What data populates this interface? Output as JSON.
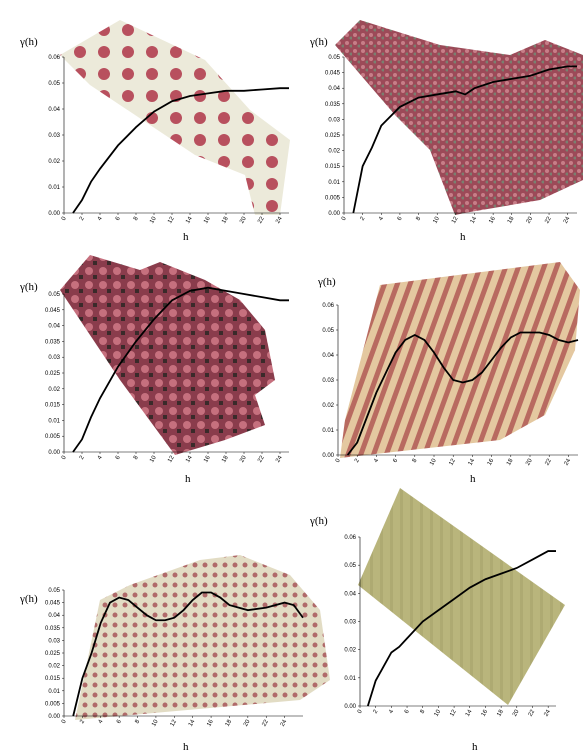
{
  "chart_data": [
    {
      "type": "line",
      "y_label": "γ(h)",
      "x_label": "h",
      "color": "#000000",
      "x": [
        1,
        2,
        3,
        4,
        6,
        8,
        10,
        12,
        14,
        16,
        18,
        20,
        22,
        24,
        25
      ],
      "values": [
        0,
        0.005,
        0.012,
        0.017,
        0.026,
        0.033,
        0.039,
        0.043,
        0.045,
        0.046,
        0.047,
        0.047,
        0.0475,
        0.048,
        0.048
      ],
      "xlim": [
        0,
        25
      ],
      "ylim": [
        0,
        0.06
      ],
      "xticks": [
        0,
        2,
        4,
        6,
        8,
        10,
        12,
        14,
        16,
        18,
        20,
        22,
        24
      ],
      "yticks": [
        {
          "value": 0,
          "label": "0.00"
        },
        0.01,
        0.02,
        0.03,
        0.04,
        0.05,
        0.06
      ]
    },
    {
      "type": "line",
      "y_label": "γ(h)",
      "x_label": "h",
      "color": "#000000",
      "x": [
        1,
        2,
        3,
        4,
        6,
        8,
        10,
        12,
        13,
        14,
        16,
        18,
        20,
        22,
        24,
        25
      ],
      "values": [
        0,
        0.015,
        0.021,
        0.028,
        0.034,
        0.037,
        0.038,
        0.039,
        0.038,
        0.04,
        0.042,
        0.043,
        0.044,
        0.046,
        0.047,
        0.047
      ],
      "xlim": [
        0,
        25
      ],
      "ylim": [
        0,
        0.05
      ],
      "xticks": [
        0,
        2,
        4,
        6,
        8,
        10,
        12,
        14,
        16,
        18,
        20,
        22,
        24
      ],
      "yticks": [
        {
          "value": 0,
          "label": "0.00"
        },
        0.005,
        0.01,
        0.015,
        0.02,
        0.025,
        0.03,
        0.035,
        0.04,
        0.045,
        0.05
      ]
    },
    {
      "type": "line",
      "y_label": "γ(h)",
      "x_label": "h",
      "color": "#000000",
      "x": [
        1,
        2,
        3,
        4,
        6,
        8,
        10,
        12,
        14,
        16,
        18,
        20,
        22,
        24,
        25
      ],
      "values": [
        0,
        0.004,
        0.011,
        0.017,
        0.027,
        0.035,
        0.042,
        0.048,
        0.051,
        0.052,
        0.051,
        0.05,
        0.049,
        0.048,
        0.048
      ],
      "xlim": [
        0,
        25
      ],
      "ylim": [
        0,
        0.05
      ],
      "xticks": [
        0,
        2,
        4,
        6,
        8,
        10,
        12,
        14,
        16,
        18,
        20,
        22,
        24
      ],
      "yticks": [
        {
          "value": 0,
          "label": "0.00"
        },
        0.005,
        0.01,
        0.015,
        0.02,
        0.025,
        0.03,
        0.035,
        0.04,
        0.045,
        0.05
      ]
    },
    {
      "type": "line",
      "y_label": "γ(h)",
      "x_label": "h",
      "color": "#000000",
      "x": [
        1,
        2,
        3,
        4,
        5,
        6,
        7,
        8,
        9,
        10,
        11,
        12,
        13,
        14,
        15,
        16,
        17,
        18,
        19,
        20,
        21,
        22,
        23,
        24,
        25
      ],
      "values": [
        0,
        0.005,
        0.015,
        0.025,
        0.033,
        0.041,
        0.046,
        0.048,
        0.046,
        0.041,
        0.035,
        0.03,
        0.029,
        0.03,
        0.033,
        0.038,
        0.043,
        0.047,
        0.049,
        0.049,
        0.049,
        0.048,
        0.046,
        0.045,
        0.046
      ],
      "xlim": [
        0,
        25
      ],
      "ylim": [
        0,
        0.06
      ],
      "xticks": [
        0,
        2,
        4,
        6,
        8,
        10,
        12,
        14,
        16,
        18,
        20,
        22,
        24
      ],
      "yticks": [
        {
          "value": 0,
          "label": "0.00"
        },
        0.01,
        0.02,
        0.03,
        0.04,
        0.05,
        0.06
      ]
    },
    {
      "type": "line",
      "y_label": "γ(h)",
      "x_label": "h",
      "color": "#000000",
      "x": [
        1,
        2,
        3,
        4,
        5,
        6,
        7,
        8,
        9,
        10,
        11,
        12,
        13,
        14,
        15,
        16,
        17,
        18,
        20,
        22,
        24,
        25,
        26
      ],
      "values": [
        0,
        0.015,
        0.025,
        0.037,
        0.045,
        0.047,
        0.046,
        0.043,
        0.04,
        0.038,
        0.038,
        0.039,
        0.042,
        0.046,
        0.049,
        0.049,
        0.047,
        0.044,
        0.042,
        0.043,
        0.045,
        0.044,
        0.039
      ],
      "xlim": [
        0,
        26
      ],
      "ylim": [
        0,
        0.05
      ],
      "xticks": [
        0,
        2,
        4,
        6,
        8,
        10,
        12,
        14,
        16,
        18,
        20,
        22,
        24
      ],
      "yticks": [
        {
          "value": 0,
          "label": "0.00"
        },
        0.005,
        0.01,
        0.015,
        0.02,
        0.025,
        0.03,
        0.035,
        0.04,
        0.045,
        0.05
      ]
    },
    {
      "type": "line",
      "y_label": "γ(h)",
      "x_label": "h",
      "color": "#000000",
      "x": [
        1,
        2,
        3,
        4,
        5,
        6,
        8,
        10,
        12,
        14,
        16,
        18,
        20,
        22,
        24,
        25
      ],
      "values": [
        0,
        0.009,
        0.014,
        0.019,
        0.021,
        0.024,
        0.03,
        0.034,
        0.038,
        0.042,
        0.045,
        0.047,
        0.049,
        0.052,
        0.055,
        0.055
      ],
      "xlim": [
        0,
        25
      ],
      "ylim": [
        0,
        0.06
      ],
      "xticks": [
        0,
        2,
        4,
        6,
        8,
        10,
        12,
        14,
        16,
        18,
        20,
        22,
        24
      ],
      "yticks": [
        {
          "value": 0,
          "label": "0.00"
        },
        0.01,
        0.02,
        0.03,
        0.04,
        0.05,
        0.06
      ]
    }
  ]
}
